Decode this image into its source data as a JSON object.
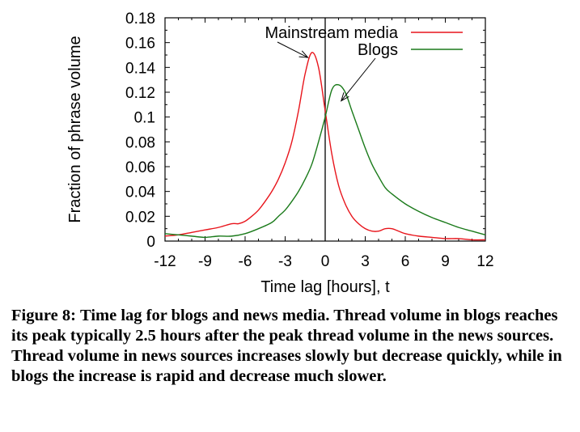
{
  "chart_data": {
    "type": "line",
    "xlabel": "Time lag [hours], t",
    "ylabel": "Fraction of phrase volume",
    "xlim": [
      -12,
      12
    ],
    "ylim": [
      0,
      0.18
    ],
    "xticks": [
      "-12",
      "-9",
      "-6",
      "-3",
      "0",
      "3",
      "6",
      "9",
      "12"
    ],
    "yticks": [
      "0",
      "0.02",
      "0.04",
      "0.06",
      "0.08",
      "0.1",
      "0.12",
      "0.14",
      "0.16",
      "0.18"
    ],
    "legend_position": "top-right",
    "vertical_line_x": 0,
    "series": [
      {
        "name": "Mainstream media",
        "color": "#e8141b",
        "x": [
          -12,
          -11,
          -10,
          -9,
          -8,
          -7,
          -6.5,
          -6,
          -5.5,
          -5,
          -4.5,
          -4,
          -3.5,
          -3,
          -2.5,
          -2,
          -1.5,
          -1,
          -0.5,
          0,
          0.5,
          1,
          1.5,
          2,
          2.5,
          3,
          3.5,
          4,
          4.5,
          5,
          5.5,
          6,
          7,
          8,
          9,
          10,
          11,
          12
        ],
        "y": [
          0.004,
          0.005,
          0.007,
          0.009,
          0.011,
          0.014,
          0.014,
          0.016,
          0.02,
          0.025,
          0.032,
          0.04,
          0.05,
          0.063,
          0.08,
          0.105,
          0.135,
          0.152,
          0.14,
          0.105,
          0.07,
          0.045,
          0.03,
          0.02,
          0.014,
          0.01,
          0.008,
          0.008,
          0.01,
          0.01,
          0.008,
          0.006,
          0.004,
          0.003,
          0.002,
          0.002,
          0.001,
          0.001
        ]
      },
      {
        "name": "Blogs",
        "color": "#1a7a1a",
        "x": [
          -12,
          -11,
          -10,
          -9,
          -8,
          -7,
          -6,
          -5,
          -4,
          -3.5,
          -3,
          -2.5,
          -2,
          -1.5,
          -1,
          -0.5,
          0,
          0.5,
          1,
          1.5,
          2,
          2.5,
          3,
          3.5,
          4,
          4.5,
          5,
          6,
          7,
          8,
          9,
          10,
          11,
          12
        ],
        "y": [
          0.006,
          0.005,
          0.004,
          0.003,
          0.004,
          0.004,
          0.006,
          0.01,
          0.015,
          0.02,
          0.025,
          0.032,
          0.04,
          0.05,
          0.062,
          0.08,
          0.1,
          0.122,
          0.126,
          0.12,
          0.105,
          0.09,
          0.075,
          0.062,
          0.052,
          0.043,
          0.038,
          0.03,
          0.024,
          0.019,
          0.015,
          0.011,
          0.008,
          0.005
        ]
      }
    ],
    "annotations": [
      {
        "text": "Mainstream media",
        "points_to": {
          "x": -1.3,
          "y": 0.148
        }
      },
      {
        "text": "Blogs",
        "points_to": {
          "x": 1.2,
          "y": 0.113
        }
      }
    ]
  },
  "caption": {
    "label": "Figure 8:",
    "text": "Time lag for blogs and news media. Thread volume in blogs reaches its peak typically 2.5 hours after the peak thread volume in the news sources. Thread volume in news sources increases slowly but decrease quickly, while in blogs the increase is rapid and decrease much slower."
  }
}
